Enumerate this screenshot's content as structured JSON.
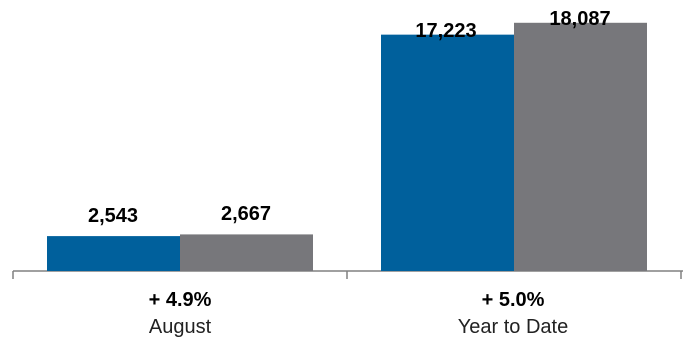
{
  "chart_data": {
    "type": "bar",
    "categories": [
      "August",
      "Year to Date"
    ],
    "changes": [
      "+ 4.9%",
      "+ 5.0%"
    ],
    "series": [
      {
        "values": [
          2543,
          2667
        ],
        "value_labels": [
          "2,543",
          "2,667"
        ],
        "color": "#00609c"
      },
      {
        "values": [
          17223,
          18087
        ],
        "value_labels": [
          "17,223",
          "18,087"
        ],
        "color": "#77777b"
      }
    ],
    "grouping": "period-pair",
    "ylim": [
      0,
      18800
    ],
    "grid": false,
    "legend": "none",
    "axis_color": "#808080"
  }
}
